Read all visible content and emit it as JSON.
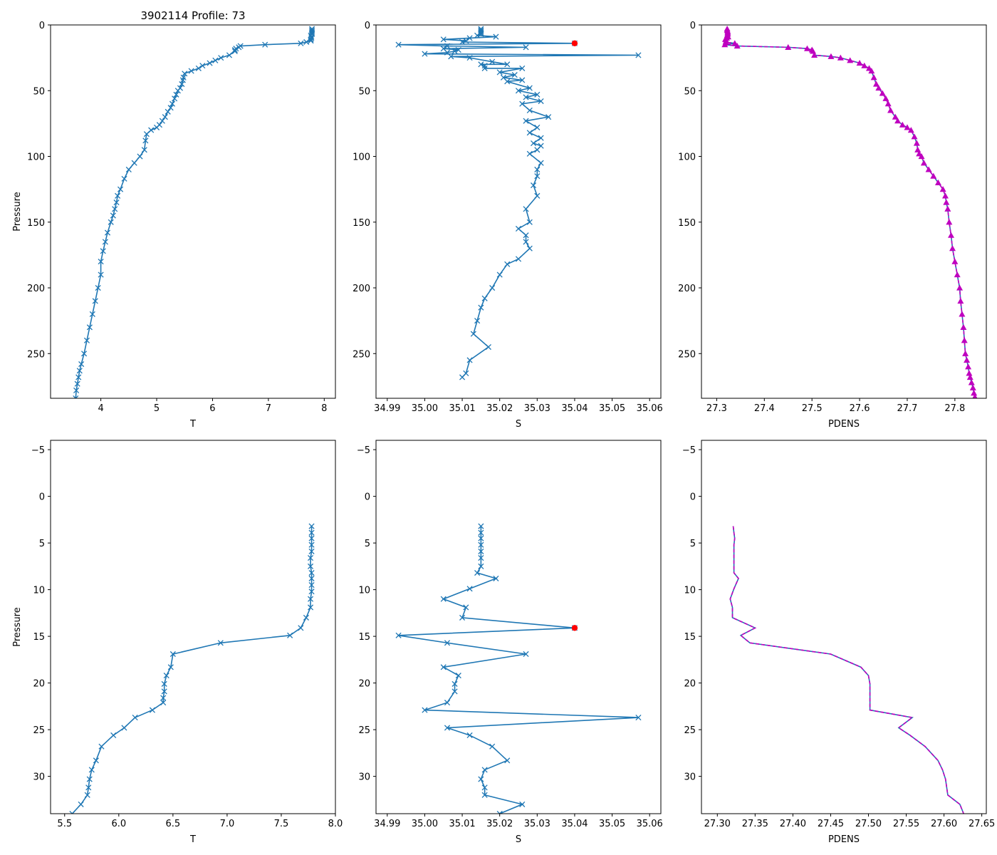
{
  "figure_title": "3902114 Profile: 73",
  "chart_data": [
    {
      "id": "top-T",
      "type": "line",
      "xlabel": "T",
      "ylabel": "Pressure",
      "title": "3902114 Profile: 73",
      "xlim": [
        3.1,
        8.2
      ],
      "ylim": [
        284,
        0
      ],
      "xticks": [
        4,
        5,
        6,
        7,
        8
      ],
      "xtick_labels": [
        "4",
        "5",
        "6",
        "7",
        "8"
      ],
      "yticks": [
        0,
        50,
        100,
        150,
        200,
        250
      ],
      "ytick_labels": [
        "0",
        "50",
        "100",
        "150",
        "200",
        "250"
      ],
      "series": [
        {
          "name": "T",
          "marker": "x",
          "x": [
            7.78,
            7.78,
            7.78,
            7.78,
            7.78,
            7.76,
            7.77,
            7.77,
            7.76,
            7.76,
            7.68,
            7.58,
            6.94,
            6.5,
            6.47,
            6.42,
            6.4,
            6.4,
            6.3,
            6.15,
            6.05,
            5.95,
            5.82,
            5.75,
            5.62,
            5.5,
            5.48,
            5.47,
            5.45,
            5.42,
            5.38,
            5.35,
            5.32,
            5.28,
            5.25,
            5.2,
            5.15,
            5.1,
            5.05,
            5.0,
            4.9,
            4.82,
            4.8,
            4.78,
            4.7,
            4.6,
            4.5,
            4.42,
            4.35,
            4.3,
            4.28,
            4.25,
            4.22,
            4.18,
            4.12,
            4.08,
            4.04,
            4.0,
            4.0,
            3.95,
            3.9,
            3.85,
            3.8,
            3.75,
            3.7,
            3.65,
            3.62,
            3.6,
            3.58,
            3.56,
            3.55
          ],
          "y": [
            3,
            4,
            5,
            6,
            7,
            8,
            9,
            10,
            11,
            12,
            13,
            14,
            15,
            16,
            17,
            18,
            19,
            20,
            23,
            25,
            27,
            29,
            31,
            33,
            35,
            37,
            40,
            42,
            45,
            48,
            50,
            53,
            56,
            60,
            63,
            66,
            70,
            73,
            76,
            78,
            80,
            83,
            88,
            95,
            100,
            105,
            110,
            117,
            125,
            130,
            135,
            140,
            145,
            150,
            158,
            165,
            172,
            180,
            190,
            200,
            210,
            220,
            230,
            240,
            250,
            258,
            263,
            268,
            273,
            278,
            284
          ]
        }
      ]
    },
    {
      "id": "top-S",
      "type": "line",
      "xlabel": "S",
      "ylabel": "",
      "xlim": [
        34.987,
        35.063
      ],
      "ylim": [
        284,
        0
      ],
      "xticks": [
        34.99,
        35.0,
        35.01,
        35.02,
        35.03,
        35.04,
        35.05,
        35.06
      ],
      "xtick_labels": [
        "34.99",
        "35.00",
        "35.01",
        "35.02",
        "35.03",
        "35.04",
        "35.05",
        "35.06"
      ],
      "yticks": [
        0,
        50,
        100,
        150,
        200,
        250
      ],
      "ytick_labels": [
        "0",
        "50",
        "100",
        "150",
        "200",
        "250"
      ],
      "flag_points": [
        {
          "x": 35.04,
          "y": 14
        }
      ],
      "series": [
        {
          "name": "S",
          "marker": "x",
          "x": [
            35.015,
            35.015,
            35.015,
            35.015,
            35.015,
            35.014,
            35.019,
            35.012,
            35.005,
            35.011,
            35.01,
            35.04,
            34.993,
            35.006,
            35.027,
            35.005,
            35.009,
            35.008,
            35.006,
            35.0,
            35.057,
            35.007,
            35.012,
            35.018,
            35.022,
            35.015,
            35.016,
            35.016,
            35.026,
            35.02,
            35.024,
            35.021,
            35.026,
            35.022,
            35.028,
            35.025,
            35.03,
            35.027,
            35.031,
            35.026,
            35.028,
            35.033,
            35.027,
            35.03,
            35.028,
            35.031,
            35.029,
            35.031,
            35.03,
            35.028,
            35.031,
            35.03,
            35.03,
            35.029,
            35.03,
            35.027,
            35.028,
            35.025,
            35.027,
            35.027,
            35.028,
            35.025,
            35.022,
            35.02,
            35.018,
            35.016,
            35.015,
            35.014,
            35.013,
            35.017,
            35.012,
            35.011,
            35.01
          ],
          "y": [
            3,
            4,
            5,
            6,
            7,
            8,
            9,
            10,
            11,
            12,
            13,
            14,
            15,
            16,
            17,
            18,
            19,
            20,
            21,
            22,
            23,
            24,
            25,
            28,
            30,
            30,
            31,
            33,
            33,
            36,
            38,
            40,
            42,
            43,
            48,
            50,
            53,
            55,
            58,
            60,
            65,
            70,
            73,
            78,
            82,
            86,
            90,
            92,
            95,
            98,
            105,
            110,
            115,
            122,
            130,
            140,
            150,
            155,
            160,
            165,
            170,
            178,
            182,
            190,
            200,
            208,
            215,
            225,
            235,
            245,
            255,
            265,
            268
          ]
        }
      ]
    },
    {
      "id": "top-PDENS",
      "type": "line",
      "xlabel": "PDENS",
      "ylabel": "",
      "xlim": [
        27.268,
        27.866
      ],
      "ylim": [
        284,
        0
      ],
      "xticks": [
        27.3,
        27.4,
        27.5,
        27.6,
        27.7,
        27.8
      ],
      "xtick_labels": [
        "27.3",
        "27.4",
        "27.5",
        "27.6",
        "27.7",
        "27.8"
      ],
      "yticks": [
        0,
        50,
        100,
        150,
        200,
        250
      ],
      "ytick_labels": [
        "0",
        "50",
        "100",
        "150",
        "200",
        "250"
      ],
      "series": [
        {
          "name": "PDENS",
          "marker": "triangle",
          "x": [
            27.322,
            27.322,
            27.323,
            27.323,
            27.323,
            27.322,
            27.324,
            27.321,
            27.318,
            27.32,
            27.319,
            27.338,
            27.317,
            27.343,
            27.45,
            27.49,
            27.5,
            27.502,
            27.505,
            27.54,
            27.56,
            27.58,
            27.6,
            27.61,
            27.62,
            27.625,
            27.63,
            27.635,
            27.64,
            27.648,
            27.655,
            27.66,
            27.665,
            27.675,
            27.68,
            27.69,
            27.7,
            27.708,
            27.715,
            27.72,
            27.722,
            27.725,
            27.73,
            27.735,
            27.745,
            27.755,
            27.765,
            27.775,
            27.78,
            27.782,
            27.785,
            27.788,
            27.792,
            27.795,
            27.8,
            27.805,
            27.81,
            27.812,
            27.815,
            27.818,
            27.82,
            27.822,
            27.825,
            27.828,
            27.83,
            27.832,
            27.835,
            27.838,
            27.84,
            27.842,
            27.843
          ],
          "y": [
            3,
            4,
            5,
            6,
            7,
            8,
            9,
            10,
            11,
            12,
            13,
            14,
            15,
            16,
            17,
            18,
            19,
            20,
            23,
            24,
            25,
            27,
            29,
            31,
            33,
            35,
            40,
            45,
            48,
            52,
            56,
            60,
            65,
            70,
            73,
            76,
            78,
            80,
            85,
            90,
            95,
            98,
            100,
            105,
            110,
            115,
            120,
            125,
            130,
            135,
            140,
            150,
            160,
            170,
            180,
            190,
            200,
            210,
            220,
            230,
            240,
            250,
            255,
            260,
            265,
            268,
            272,
            276,
            280,
            283,
            284
          ]
        }
      ]
    },
    {
      "id": "bottom-T",
      "type": "line",
      "xlabel": "T",
      "ylabel": "Pressure",
      "xlim": [
        5.37,
        8.0
      ],
      "ylim": [
        34,
        -6
      ],
      "xticks": [
        5.5,
        6.0,
        6.5,
        7.0,
        7.5,
        8.0
      ],
      "xtick_labels": [
        "5.5",
        "6.0",
        "6.5",
        "7.0",
        "7.5",
        "8.0"
      ],
      "yticks": [
        -5,
        0,
        5,
        10,
        15,
        20,
        25,
        30
      ],
      "ytick_labels": [
        "−5",
        "0",
        "5",
        "10",
        "15",
        "20",
        "25",
        "30"
      ],
      "series": [
        {
          "name": "T",
          "marker": "x",
          "x": [
            7.78,
            7.78,
            7.78,
            7.78,
            7.78,
            7.77,
            7.77,
            7.78,
            7.78,
            7.78,
            7.78,
            7.77,
            7.77,
            7.73,
            7.68,
            7.58,
            6.94,
            6.5,
            6.48,
            6.44,
            6.42,
            6.42,
            6.41,
            6.41,
            6.31,
            6.15,
            6.05,
            5.95,
            5.84,
            5.79,
            5.75,
            5.73,
            5.72,
            5.71,
            5.65,
            5.57,
            5.54
          ],
          "y": [
            3.2,
            3.9,
            4.5,
            5.2,
            5.9,
            6.6,
            7.5,
            8.2,
            8.8,
            9.5,
            10.2,
            11.0,
            11.9,
            13.0,
            14.1,
            14.9,
            15.7,
            16.9,
            18.3,
            19.2,
            20.1,
            20.9,
            21.6,
            22.1,
            22.9,
            23.7,
            24.8,
            25.6,
            26.8,
            28.3,
            29.3,
            30.3,
            31.2,
            32.0,
            33.0,
            34.0,
            34.6
          ]
        }
      ]
    },
    {
      "id": "bottom-S",
      "type": "line",
      "xlabel": "S",
      "ylabel": "",
      "xlim": [
        34.987,
        35.063
      ],
      "ylim": [
        34,
        -6
      ],
      "xticks": [
        34.99,
        35.0,
        35.01,
        35.02,
        35.03,
        35.04,
        35.05,
        35.06
      ],
      "xtick_labels": [
        "34.99",
        "35.00",
        "35.01",
        "35.02",
        "35.03",
        "35.04",
        "35.05",
        "35.06"
      ],
      "yticks": [
        -5,
        0,
        5,
        10,
        15,
        20,
        25,
        30
      ],
      "ytick_labels": [
        "−5",
        "0",
        "5",
        "10",
        "15",
        "20",
        "25",
        "30"
      ],
      "flag_points": [
        {
          "x": 35.04,
          "y": 14.1
        }
      ],
      "series": [
        {
          "name": "S",
          "marker": "x",
          "x": [
            35.015,
            35.015,
            35.015,
            35.015,
            35.015,
            35.015,
            35.015,
            35.014,
            35.019,
            35.012,
            35.005,
            35.011,
            35.01,
            35.04,
            34.993,
            35.006,
            35.027,
            35.005,
            35.009,
            35.008,
            35.008,
            35.006,
            35.0,
            35.057,
            35.006,
            35.012,
            35.018,
            35.022,
            35.016,
            35.015,
            35.016,
            35.016,
            35.026,
            35.02
          ],
          "y": [
            3.2,
            3.9,
            4.5,
            5.2,
            5.9,
            6.6,
            7.5,
            8.2,
            8.8,
            9.9,
            11.0,
            11.9,
            13.0,
            14.1,
            14.9,
            15.7,
            16.9,
            18.3,
            19.2,
            20.1,
            20.9,
            22.1,
            22.9,
            23.7,
            24.8,
            25.6,
            26.8,
            28.3,
            29.3,
            30.3,
            31.2,
            32.0,
            33.0,
            34.0
          ]
        }
      ]
    },
    {
      "id": "bottom-PDENS",
      "type": "line",
      "xlabel": "PDENS",
      "ylabel": "",
      "xlim": [
        27.279,
        27.656
      ],
      "ylim": [
        34,
        -6
      ],
      "xticks": [
        27.3,
        27.35,
        27.4,
        27.45,
        27.5,
        27.55,
        27.6,
        27.65
      ],
      "xtick_labels": [
        "27.30",
        "27.35",
        "27.40",
        "27.45",
        "27.50",
        "27.55",
        "27.60",
        "27.65"
      ],
      "yticks": [
        -5,
        0,
        5,
        10,
        15,
        20,
        25,
        30
      ],
      "ytick_labels": [
        "−5",
        "0",
        "5",
        "10",
        "15",
        "20",
        "25",
        "30"
      ],
      "series": [
        {
          "name": "PDENS",
          "marker": "none",
          "x": [
            27.321,
            27.322,
            27.323,
            27.322,
            27.322,
            27.322,
            27.322,
            27.322,
            27.328,
            27.322,
            27.317,
            27.32,
            27.32,
            27.35,
            27.331,
            27.343,
            27.45,
            27.49,
            27.5,
            27.502,
            27.502,
            27.502,
            27.502,
            27.558,
            27.54,
            27.555,
            27.575,
            27.592,
            27.598,
            27.602,
            27.605,
            27.621,
            27.626
          ],
          "y": [
            3.2,
            3.9,
            4.5,
            5.2,
            5.9,
            6.6,
            7.5,
            8.2,
            8.8,
            9.9,
            11.0,
            11.9,
            13.0,
            14.1,
            14.9,
            15.7,
            16.9,
            18.3,
            19.2,
            20.1,
            20.9,
            22.1,
            22.9,
            23.7,
            24.8,
            25.6,
            26.8,
            28.3,
            29.3,
            30.3,
            32.0,
            33.0,
            34.0
          ]
        }
      ]
    }
  ]
}
